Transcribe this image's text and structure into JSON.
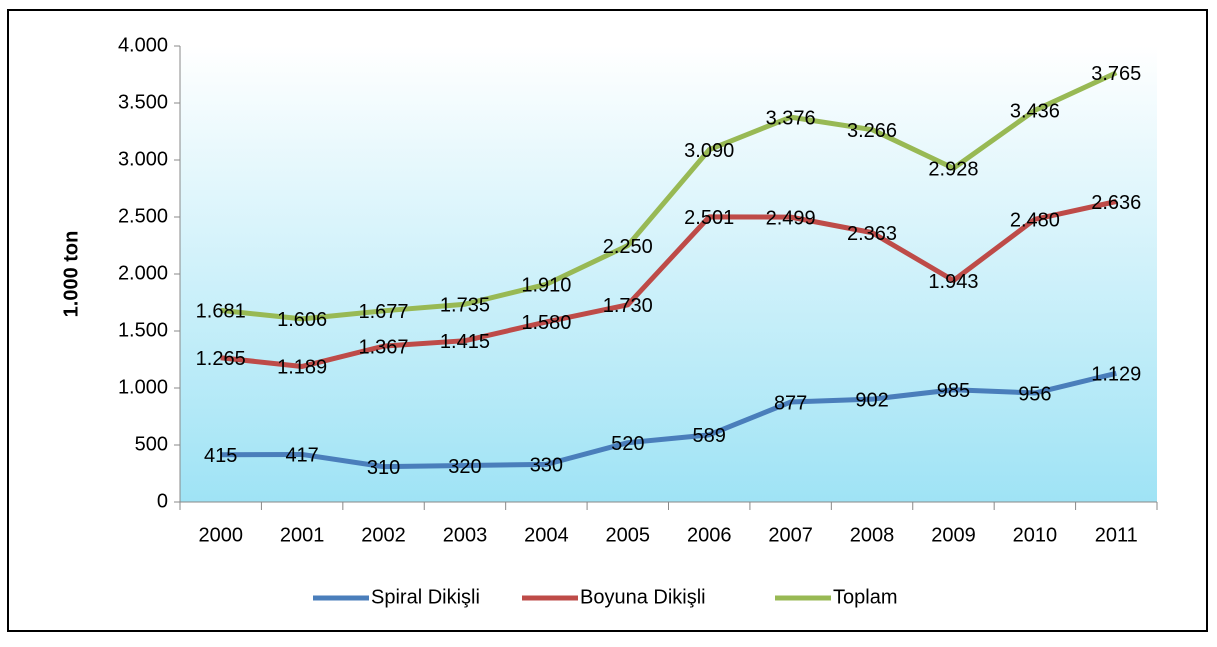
{
  "chart_data": {
    "type": "line",
    "ylabel": "1.000 ton",
    "categories": [
      "2000",
      "2001",
      "2002",
      "2003",
      "2004",
      "2005",
      "2006",
      "2007",
      "2008",
      "2009",
      "2010",
      "2011"
    ],
    "series": [
      {
        "name": "Spiral Dikişli",
        "color": "#4a7ebb",
        "values": [
          415,
          417,
          310,
          320,
          330,
          520,
          589,
          877,
          902,
          985,
          956,
          1129
        ],
        "value_labels": [
          "415",
          "417",
          "310",
          "320",
          "330",
          "520",
          "589",
          "877",
          "902",
          "985",
          "956",
          "1.129"
        ]
      },
      {
        "name": "Boyuna Dikişli",
        "color": "#be4b48",
        "values": [
          1265,
          1189,
          1367,
          1415,
          1580,
          1730,
          2501,
          2499,
          2363,
          1943,
          2480,
          2636
        ],
        "value_labels": [
          "1.265",
          "1.189",
          "1.367",
          "1.415",
          "1.580",
          "1.730",
          "2.501",
          "2.499",
          "2.363",
          "1.943",
          "2.480",
          "2.636"
        ]
      },
      {
        "name": "Toplam",
        "color": "#98b954",
        "values": [
          1681,
          1606,
          1677,
          1735,
          1910,
          2250,
          3090,
          3376,
          3266,
          2928,
          3436,
          3765
        ],
        "value_labels": [
          "1.681",
          "1.606",
          "1.677",
          "1.735",
          "1.910",
          "2.250",
          "3.090",
          "3.376",
          "3.266",
          "2.928",
          "3.436",
          "3.765"
        ]
      }
    ],
    "ylim": [
      0,
      4000
    ],
    "yticks": [
      0,
      500,
      {
        "value": 1000,
        "label": "1.000"
      },
      {
        "value": 1500,
        "label": "1.500"
      },
      {
        "value": 2000,
        "label": "2.000"
      },
      {
        "value": 2500,
        "label": "2.500"
      },
      {
        "value": 3000,
        "label": "3.000"
      },
      {
        "value": 3500,
        "label": "3.500"
      },
      {
        "value": 4000,
        "label": "4.000"
      }
    ],
    "legend": "bottom"
  }
}
